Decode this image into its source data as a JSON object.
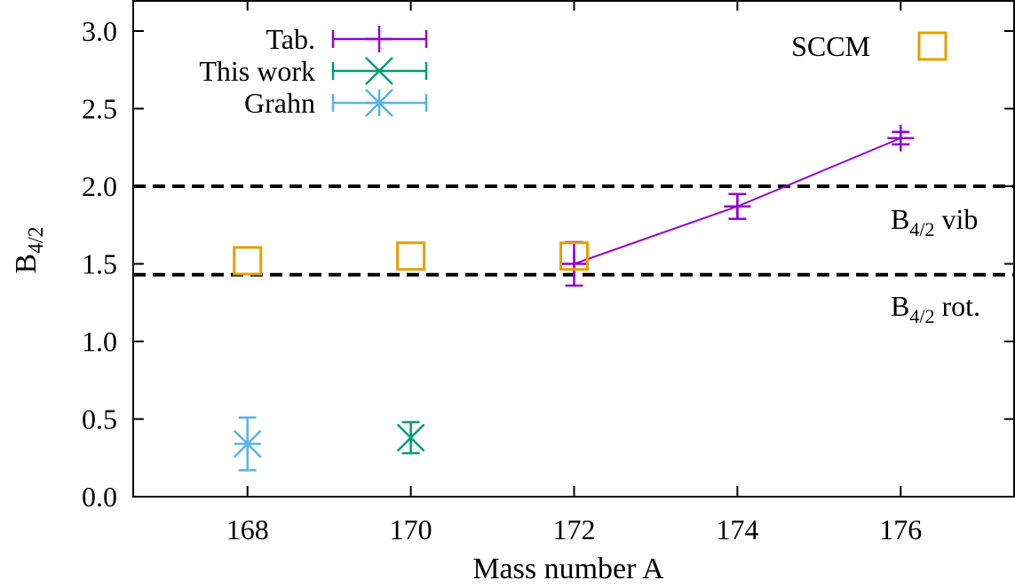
{
  "chart_data": {
    "type": "scatter",
    "xlabel": "Mass number A",
    "ylabel_main": "B",
    "ylabel_sub": "4/2",
    "xlim": [
      166.6,
      177.4
    ],
    "ylim": [
      0.0,
      3.2
    ],
    "xticks": [
      168,
      170,
      172,
      174,
      176
    ],
    "yticks": [
      0.0,
      0.5,
      1.0,
      1.5,
      2.0,
      2.5,
      3.0
    ],
    "grid": false,
    "series": [
      {
        "name": "Tab.",
        "color": "#9400d3",
        "marker": "plus",
        "connected": true,
        "points": [
          {
            "x": 172,
            "y": 1.5,
            "err": 0.14
          },
          {
            "x": 174,
            "y": 1.87,
            "err": 0.08
          },
          {
            "x": 176,
            "y": 2.31,
            "err": 0.04
          }
        ]
      },
      {
        "name": "This work",
        "color": "#009e73",
        "marker": "cross",
        "connected": false,
        "points": [
          {
            "x": 170,
            "y": 0.38,
            "err": 0.1
          }
        ]
      },
      {
        "name": "Grahn",
        "color": "#56b4e9",
        "marker": "star",
        "connected": false,
        "points": [
          {
            "x": 168,
            "y": 0.34,
            "err": 0.17
          }
        ]
      },
      {
        "name": "SCCM",
        "color": "#e69f00",
        "marker": "square",
        "connected": false,
        "points": [
          {
            "x": 168,
            "y": 1.52
          },
          {
            "x": 170,
            "y": 1.55
          },
          {
            "x": 172,
            "y": 1.55
          }
        ]
      }
    ],
    "reference_lines": [
      {
        "y": 2.0,
        "label_main": "B",
        "label_sub": "4/2",
        "label_suffix": " vib",
        "style": "dashed"
      },
      {
        "y": 1.43,
        "label_main": "B",
        "label_sub": "4/2",
        "label_suffix": " rot.",
        "style": "dashed"
      }
    ],
    "legends": [
      {
        "position": "top-left",
        "entries": [
          "Tab.",
          "This work",
          "Grahn"
        ]
      },
      {
        "position": "top-right",
        "entries": [
          "SCCM"
        ]
      }
    ]
  }
}
